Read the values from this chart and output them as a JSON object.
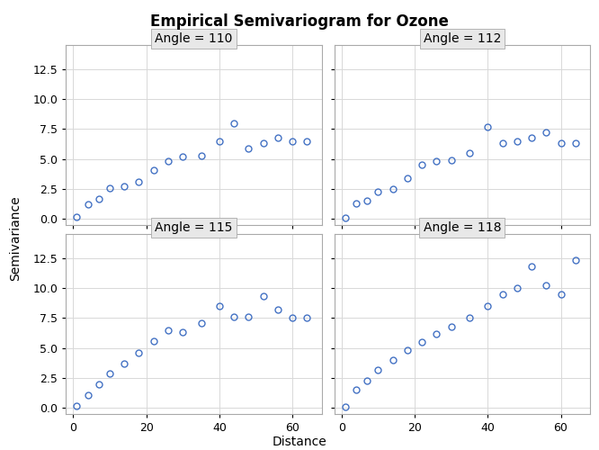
{
  "title": "Empirical Semivariogram for Ozone",
  "xlabel": "Distance",
  "ylabel": "Semivariance",
  "panels": [
    {
      "label": "Angle = 110",
      "x": [
        1,
        4,
        7,
        10,
        14,
        18,
        22,
        26,
        30,
        35,
        40,
        44,
        48,
        52,
        56,
        60,
        64
      ],
      "y": [
        0.15,
        1.2,
        1.7,
        2.6,
        2.7,
        3.1,
        4.1,
        4.8,
        5.2,
        5.3,
        6.5,
        8.0,
        5.9,
        6.3,
        6.8,
        6.5,
        6.5
      ]
    },
    {
      "label": "Angle = 112",
      "x": [
        1,
        4,
        7,
        10,
        14,
        18,
        22,
        26,
        30,
        35,
        40,
        44,
        48,
        52,
        56,
        60,
        64
      ],
      "y": [
        0.1,
        1.3,
        1.5,
        2.3,
        2.5,
        3.4,
        4.5,
        4.8,
        4.9,
        5.5,
        7.7,
        6.3,
        6.5,
        6.8,
        7.2,
        6.3,
        6.3
      ]
    },
    {
      "label": "Angle = 115",
      "x": [
        1,
        4,
        7,
        10,
        14,
        18,
        22,
        26,
        30,
        35,
        40,
        44,
        48,
        52,
        56,
        60,
        64
      ],
      "y": [
        0.2,
        1.1,
        2.0,
        2.9,
        3.7,
        4.6,
        5.6,
        6.5,
        6.3,
        7.1,
        8.5,
        7.6,
        7.6,
        9.3,
        8.2,
        7.5,
        7.5
      ]
    },
    {
      "label": "Angle = 118",
      "x": [
        1,
        4,
        7,
        10,
        14,
        18,
        22,
        26,
        30,
        35,
        40,
        44,
        48,
        52,
        56,
        60,
        64
      ],
      "y": [
        0.1,
        1.5,
        2.3,
        3.2,
        4.0,
        4.8,
        5.5,
        6.2,
        6.8,
        7.5,
        8.5,
        9.5,
        10.0,
        11.8,
        10.2,
        9.5,
        12.3
      ]
    }
  ],
  "marker_color": "#4472C4",
  "marker_facecolor": "none",
  "marker_style": "o",
  "marker_size": 5,
  "ylim": [
    -0.5,
    14.5
  ],
  "xlim": [
    -2,
    68
  ],
  "yticks": [
    0.0,
    2.5,
    5.0,
    7.5,
    10.0,
    12.5
  ],
  "xticks": [
    0,
    20,
    40,
    60
  ],
  "grid_color": "#d8d8d8",
  "background_color": "#ffffff",
  "panel_bg_color": "#ffffff",
  "panel_header_color": "#e8e8e8",
  "title_fontsize": 12,
  "label_fontsize": 10,
  "tick_fontsize": 9,
  "subtitle_fontsize": 10
}
